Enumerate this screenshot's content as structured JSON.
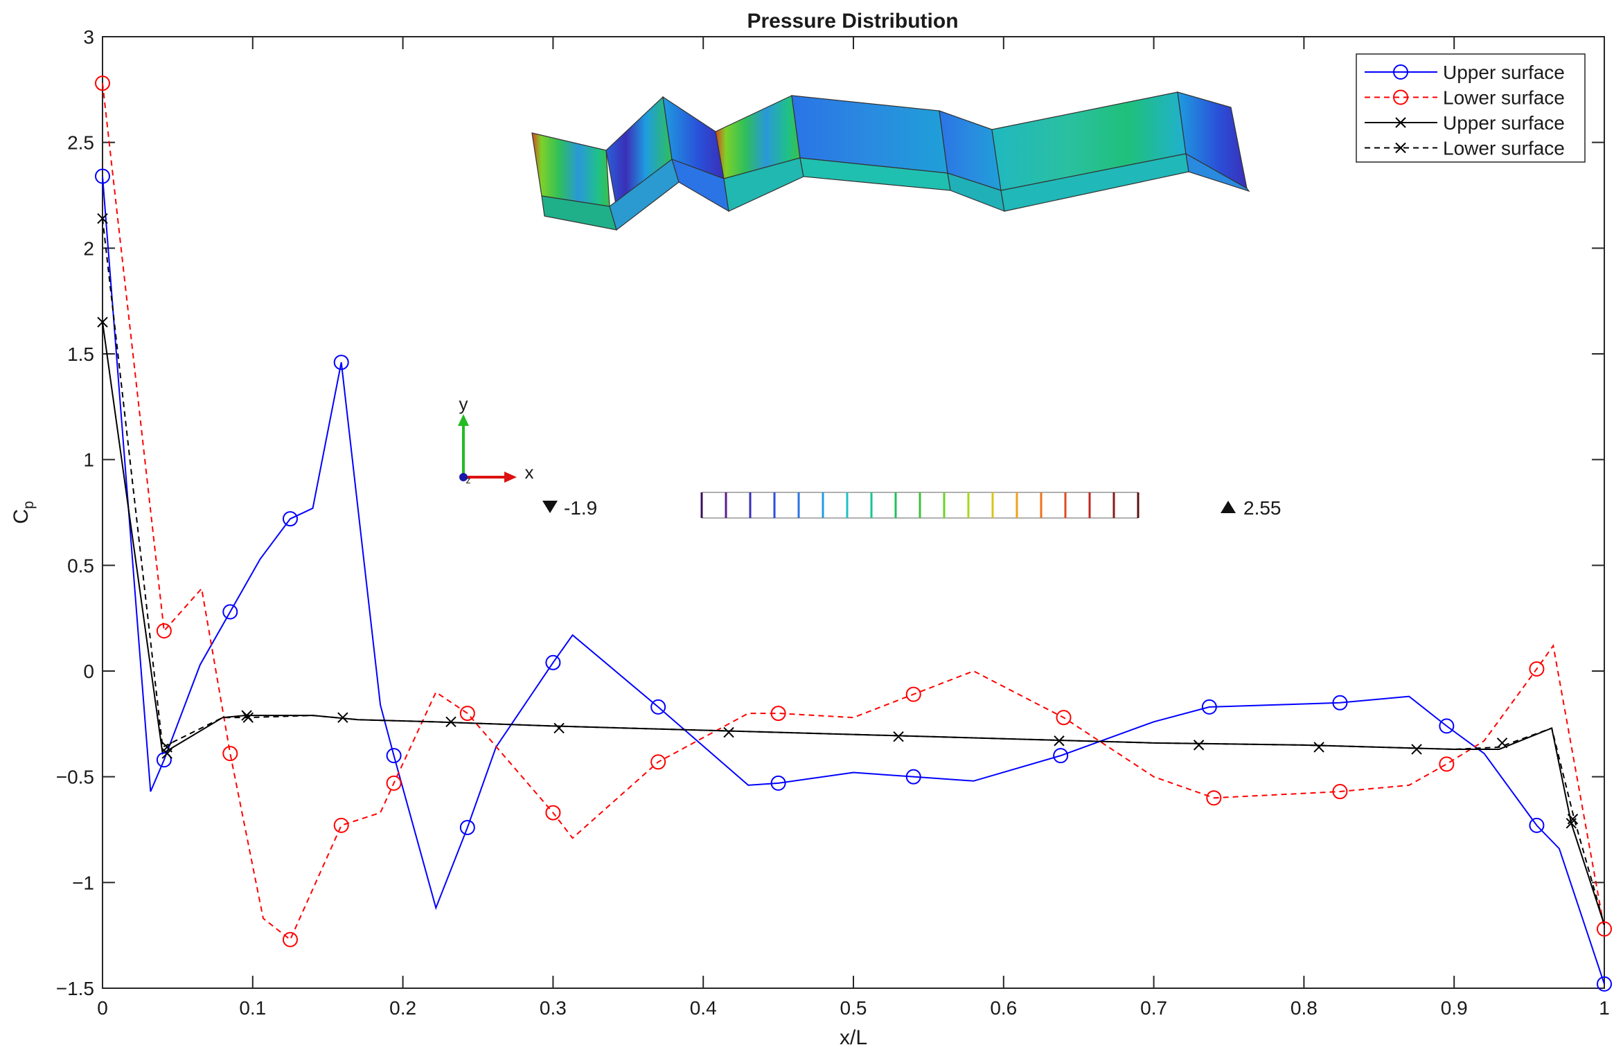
{
  "chart_data": {
    "type": "line",
    "title": "Pressure Distribution",
    "xlabel": "x/L",
    "ylabel": "C",
    "ylabel_subscript": "p",
    "xlim": [
      0,
      1
    ],
    "ylim": [
      -1.5,
      3
    ],
    "xticks": [
      0,
      0.1,
      0.2,
      0.3,
      0.4,
      0.5,
      0.6,
      0.7,
      0.8,
      0.9,
      1
    ],
    "xtick_labels": [
      "0",
      "0.1",
      "0.2",
      "0.3",
      "0.4",
      "0.5",
      "0.6",
      "0.7",
      "0.8",
      "0.9",
      "1"
    ],
    "yticks": [
      -1.5,
      -1,
      -0.5,
      0,
      0.5,
      1,
      1.5,
      2,
      2.5,
      3
    ],
    "ytick_labels": [
      "−1.5",
      "−1",
      "−0.5",
      "0",
      "0.5",
      "1",
      "1.5",
      "2",
      "2.5",
      "3"
    ],
    "grid": false,
    "legend_position": "top-right",
    "series": [
      {
        "name": "Upper surface",
        "color": "#0000ff",
        "line_style": "solid",
        "marker": "circle",
        "x": [
          0,
          0.032,
          0.041,
          0.065,
          0.085,
          0.105,
          0.125,
          0.14,
          0.159,
          0.185,
          0.194,
          0.222,
          0.243,
          0.262,
          0.3,
          0.313,
          0.37,
          0.43,
          0.45,
          0.5,
          0.54,
          0.58,
          0.638,
          0.7,
          0.737,
          0.824,
          0.87,
          0.895,
          0.92,
          0.955,
          0.97,
          1
        ],
        "y": [
          2.34,
          -0.57,
          -0.42,
          0.03,
          0.28,
          0.53,
          0.72,
          0.77,
          1.46,
          -0.16,
          -0.4,
          -1.12,
          -0.74,
          -0.36,
          0.04,
          0.17,
          -0.17,
          -0.54,
          -0.53,
          -0.48,
          -0.5,
          -0.52,
          -0.4,
          -0.24,
          -0.17,
          -0.15,
          -0.12,
          -0.26,
          -0.39,
          -0.73,
          -0.84,
          -1.48
        ],
        "marker_x": [
          0,
          0.041,
          0.085,
          0.125,
          0.159,
          0.194,
          0.243,
          0.3,
          0.37,
          0.45,
          0.54,
          0.638,
          0.737,
          0.824,
          0.895,
          0.955,
          1
        ],
        "marker_y": [
          2.34,
          -0.42,
          0.28,
          0.72,
          1.46,
          -0.4,
          -0.74,
          0.04,
          -0.17,
          -0.53,
          -0.5,
          -0.4,
          -0.17,
          -0.15,
          -0.26,
          -0.73,
          -1.48
        ]
      },
      {
        "name": "Lower surface",
        "color": "#ff0000",
        "line_style": "dashed",
        "marker": "circle",
        "x": [
          0,
          0.041,
          0.066,
          0.085,
          0.107,
          0.125,
          0.159,
          0.185,
          0.194,
          0.222,
          0.243,
          0.3,
          0.313,
          0.37,
          0.43,
          0.45,
          0.5,
          0.54,
          0.58,
          0.64,
          0.7,
          0.74,
          0.824,
          0.87,
          0.895,
          0.92,
          0.955,
          0.966,
          1
        ],
        "y": [
          2.78,
          0.19,
          0.39,
          -0.39,
          -1.17,
          -1.27,
          -0.73,
          -0.67,
          -0.53,
          -0.1,
          -0.2,
          -0.67,
          -0.79,
          -0.43,
          -0.2,
          -0.2,
          -0.22,
          -0.11,
          0,
          -0.22,
          -0.5,
          -0.6,
          -0.57,
          -0.54,
          -0.44,
          -0.33,
          0.01,
          0.12,
          -1.22
        ],
        "marker_x": [
          0,
          0.041,
          0.085,
          0.125,
          0.159,
          0.194,
          0.243,
          0.3,
          0.37,
          0.45,
          0.54,
          0.64,
          0.74,
          0.824,
          0.895,
          0.955,
          1
        ],
        "marker_y": [
          2.78,
          0.19,
          -0.39,
          -1.27,
          -0.73,
          -0.53,
          -0.2,
          -0.67,
          -0.43,
          -0.2,
          -0.11,
          -0.22,
          -0.6,
          -0.57,
          -0.44,
          0.01,
          -1.22
        ]
      },
      {
        "name": "Upper surface",
        "color": "#000000",
        "line_style": "solid",
        "marker": "x",
        "x": [
          0,
          0.04,
          0.08,
          0.095,
          0.14,
          0.17,
          0.22,
          0.3,
          0.4,
          0.5,
          0.6,
          0.7,
          0.8,
          0.9,
          0.93,
          0.965,
          0.978,
          1
        ],
        "y": [
          1.65,
          -0.39,
          -0.22,
          -0.21,
          -0.21,
          -0.23,
          -0.24,
          -0.26,
          -0.28,
          -0.3,
          -0.32,
          -0.34,
          -0.35,
          -0.37,
          -0.37,
          -0.27,
          -0.72,
          -1.2
        ],
        "marker_x": [
          0,
          0.043,
          0.096,
          0.16,
          0.232,
          0.304,
          0.417,
          0.53,
          0.637,
          0.73,
          0.81,
          0.875,
          0.932,
          0.978
        ],
        "marker_y": [
          1.65,
          -0.39,
          -0.21,
          -0.22,
          -0.24,
          -0.27,
          -0.29,
          -0.31,
          -0.33,
          -0.35,
          -0.36,
          -0.37,
          -0.34,
          -0.72
        ]
      },
      {
        "name": "Lower surface",
        "color": "#000000",
        "line_style": "dashed",
        "marker": "x",
        "x": [
          0,
          0.04,
          0.08,
          0.097,
          0.14,
          0.17,
          0.22,
          0.3,
          0.4,
          0.5,
          0.6,
          0.7,
          0.8,
          0.9,
          0.93,
          0.965,
          0.98,
          1
        ],
        "y": [
          2.14,
          -0.36,
          -0.22,
          -0.22,
          -0.21,
          -0.23,
          -0.24,
          -0.26,
          -0.28,
          -0.3,
          -0.32,
          -0.34,
          -0.35,
          -0.37,
          -0.36,
          -0.27,
          -0.7,
          -1.2
        ],
        "marker_x": [
          0,
          0.043,
          0.097,
          0.979
        ],
        "marker_y": [
          2.14,
          -0.36,
          -0.22,
          -0.7
        ]
      }
    ],
    "inset": {
      "axis_labels": {
        "y": "y",
        "x": "x",
        "z": "z"
      },
      "colorbar": {
        "min_label": "-1.9",
        "max_label": "2.55",
        "colors": [
          "#3a0f5a",
          "#5a1d8c",
          "#3a2fb8",
          "#2a4fd8",
          "#2a74e6",
          "#1f9ce0",
          "#20c0c8",
          "#18c690",
          "#1fc05a",
          "#3ec03a",
          "#6ed12a",
          "#a8d81f",
          "#d8c31a",
          "#f0a01a",
          "#f0701a",
          "#e04a1f",
          "#c0281f",
          "#8a1a1a",
          "#5a1212"
        ]
      }
    }
  }
}
